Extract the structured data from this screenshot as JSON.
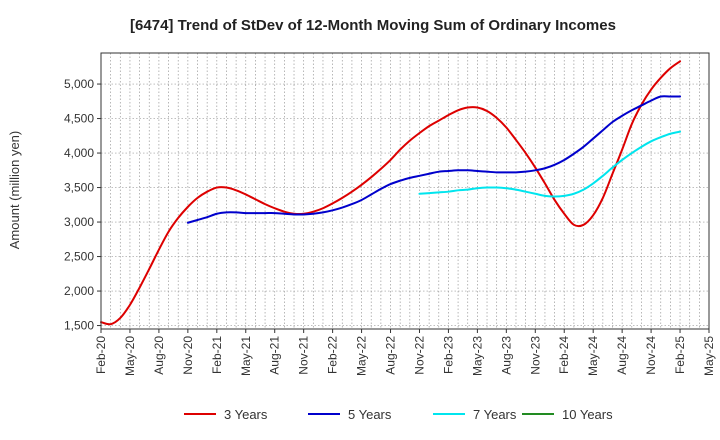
{
  "chart_data": {
    "type": "line",
    "title": "[6474]  Trend of StDev of 12-Month Moving Sum of Ordinary Incomes",
    "xlabel": "",
    "ylabel": "Amount (million yen)",
    "ylim": [
      1450,
      5450
    ],
    "yticks": [
      1500,
      2000,
      2500,
      3000,
      3500,
      4000,
      4500,
      5000
    ],
    "ytick_labels": [
      "1,500",
      "2,000",
      "2,500",
      "3,000",
      "3,500",
      "4,000",
      "4,500",
      "5,000"
    ],
    "x_range_months": [
      0,
      63
    ],
    "xticks": [
      0,
      3,
      6,
      9,
      12,
      15,
      18,
      21,
      24,
      27,
      30,
      33,
      36,
      39,
      42,
      45,
      48,
      51,
      54,
      57,
      60,
      63
    ],
    "xtick_labels": [
      "Feb-20",
      "May-20",
      "Aug-20",
      "Nov-20",
      "Feb-21",
      "May-21",
      "Aug-21",
      "Nov-21",
      "Feb-22",
      "May-22",
      "Aug-22",
      "Nov-22",
      "Feb-23",
      "May-23",
      "Aug-23",
      "Nov-23",
      "Feb-24",
      "May-24",
      "Aug-24",
      "Nov-24",
      "Feb-25",
      "May-25"
    ],
    "grid": true,
    "legend_position": "bottom",
    "series": [
      {
        "name": "3 Years",
        "color": "#dd0000",
        "x": [
          0,
          1,
          2,
          3,
          4,
          5,
          6,
          7,
          8,
          9,
          10,
          11,
          12,
          13,
          14,
          15,
          16,
          17,
          18,
          19,
          20,
          21,
          22,
          23,
          24,
          25,
          26,
          27,
          28,
          29,
          30,
          31,
          32,
          33,
          34,
          35,
          36,
          37,
          38,
          39,
          40,
          41,
          42,
          43,
          44,
          45,
          46,
          47,
          48,
          49,
          50,
          51,
          52,
          53,
          54,
          55,
          56,
          57,
          58,
          59,
          60
        ],
        "values": [
          1550,
          1520,
          1610,
          1800,
          2050,
          2320,
          2600,
          2860,
          3060,
          3220,
          3350,
          3440,
          3500,
          3500,
          3460,
          3400,
          3330,
          3260,
          3200,
          3150,
          3120,
          3120,
          3150,
          3200,
          3270,
          3350,
          3440,
          3540,
          3650,
          3770,
          3900,
          4050,
          4180,
          4290,
          4390,
          4470,
          4550,
          4620,
          4660,
          4660,
          4610,
          4510,
          4370,
          4190,
          4000,
          3790,
          3560,
          3320,
          3120,
          2960,
          2960,
          3100,
          3350,
          3700,
          4050,
          4420,
          4700,
          4920,
          5090,
          5230,
          5330
        ]
      },
      {
        "name": "5 Years",
        "color": "#0000cc",
        "x": [
          9,
          10,
          11,
          12,
          13,
          14,
          15,
          16,
          17,
          18,
          19,
          20,
          21,
          22,
          23,
          24,
          25,
          26,
          27,
          28,
          29,
          30,
          31,
          32,
          33,
          34,
          35,
          36,
          37,
          38,
          39,
          40,
          41,
          42,
          43,
          44,
          45,
          46,
          47,
          48,
          49,
          50,
          51,
          52,
          53,
          54,
          55,
          56,
          57,
          58,
          59,
          60
        ],
        "values": [
          2990,
          3030,
          3070,
          3120,
          3140,
          3140,
          3130,
          3130,
          3130,
          3130,
          3120,
          3110,
          3110,
          3120,
          3140,
          3170,
          3210,
          3260,
          3320,
          3400,
          3480,
          3550,
          3600,
          3640,
          3670,
          3700,
          3730,
          3740,
          3750,
          3750,
          3740,
          3730,
          3720,
          3720,
          3720,
          3730,
          3750,
          3780,
          3830,
          3900,
          3990,
          4090,
          4210,
          4330,
          4450,
          4540,
          4620,
          4690,
          4760,
          4820,
          4820,
          4820
        ]
      },
      {
        "name": "7 Years",
        "color": "#00e5ee",
        "x": [
          33,
          34,
          35,
          36,
          37,
          38,
          39,
          40,
          41,
          42,
          43,
          44,
          45,
          46,
          47,
          48,
          49,
          50,
          51,
          52,
          53,
          54,
          55,
          56,
          57,
          58,
          59,
          60
        ],
        "values": [
          3410,
          3420,
          3430,
          3440,
          3460,
          3470,
          3490,
          3500,
          3500,
          3490,
          3470,
          3440,
          3410,
          3380,
          3370,
          3380,
          3410,
          3470,
          3560,
          3670,
          3790,
          3900,
          4000,
          4090,
          4170,
          4230,
          4280,
          4310
        ]
      },
      {
        "name": "10 Years",
        "color": "#228b22",
        "x": [],
        "values": []
      }
    ]
  }
}
